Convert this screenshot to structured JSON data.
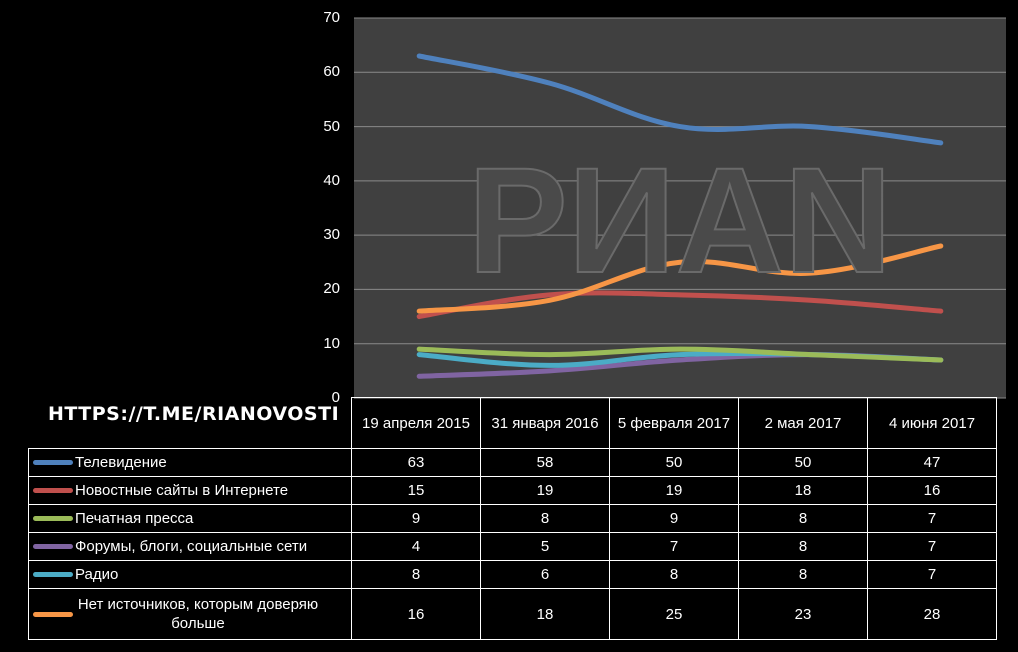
{
  "chart_data": {
    "type": "line",
    "categories": [
      "19 апреля 2015",
      "31 января 2016",
      "5 февраля 2017",
      "2 мая 2017",
      "4 июня 2017"
    ],
    "series": [
      {
        "name": "Телевидение",
        "color": "#4f81bd",
        "values": [
          63,
          58,
          50,
          50,
          47
        ]
      },
      {
        "name": "Новостные сайты в Интернете",
        "color": "#c0504d",
        "values": [
          15,
          19,
          19,
          18,
          16
        ]
      },
      {
        "name": "Печатная пресса",
        "color": "#9bbb59",
        "values": [
          9,
          8,
          9,
          8,
          7
        ]
      },
      {
        "name": "Форумы, блоги, социальные сети",
        "color": "#8064a2",
        "values": [
          4,
          5,
          7,
          8,
          7
        ]
      },
      {
        "name": "Радио",
        "color": "#4bacc6",
        "values": [
          8,
          6,
          8,
          8,
          7
        ]
      },
      {
        "name": "Нет источников, которым доверяю больше",
        "color": "#f79646",
        "values": [
          16,
          18,
          25,
          23,
          28
        ]
      }
    ],
    "yticks": [
      "0",
      "10",
      "20",
      "30",
      "40",
      "50",
      "60",
      "70"
    ],
    "ylim": [
      0,
      70
    ],
    "grid": true,
    "legend": "data-table",
    "plot_background": "#404040"
  },
  "watermark": "РИАN",
  "source": "HTTPS://T.ME/RIANOVOSTI"
}
